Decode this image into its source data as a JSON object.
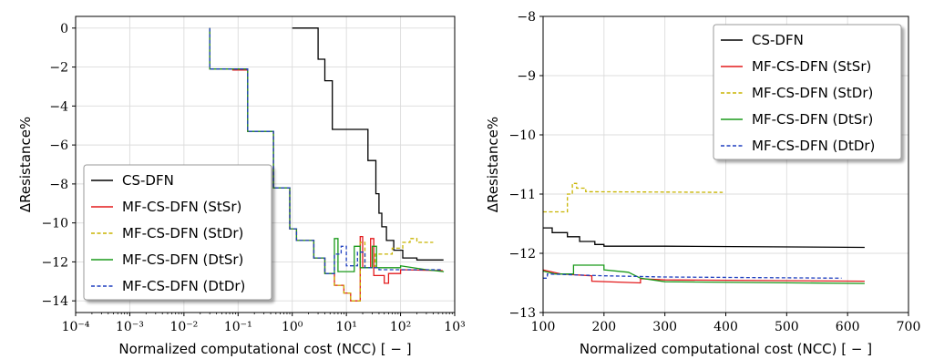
{
  "chart_data": [
    {
      "type": "line",
      "xscale": "log",
      "xlim": [
        0.0001,
        1000
      ],
      "ylim": [
        -14.6,
        0.6
      ],
      "xlabel": "Normalized computational cost (NCC) [ − ]",
      "ylabel": "ΔResistance%",
      "xtick_labels": [
        "10⁻⁴",
        "10⁻³",
        "10⁻²",
        "10⁻¹",
        "10⁰",
        "10¹",
        "10²",
        "10³"
      ],
      "ytick_labels": [
        "0",
        "−2",
        "−4",
        "−6",
        "−8",
        "−10",
        "−12",
        "−14"
      ],
      "grid": true,
      "legend_position": "lower-left",
      "series": [
        {
          "name": "CS-DFN",
          "color": "#000000",
          "dash": "solid",
          "points": [
            [
              1,
              0
            ],
            [
              3,
              0
            ],
            [
              3,
              -1.6
            ],
            [
              4,
              -1.6
            ],
            [
              4,
              -2.7
            ],
            [
              5.5,
              -2.7
            ],
            [
              5.5,
              -5.2
            ],
            [
              25,
              -5.2
            ],
            [
              25,
              -6.8
            ],
            [
              35,
              -6.8
            ],
            [
              35,
              -8.5
            ],
            [
              40,
              -8.5
            ],
            [
              40,
              -9.5
            ],
            [
              45,
              -9.5
            ],
            [
              45,
              -10.2
            ],
            [
              55,
              -10.2
            ],
            [
              55,
              -10.9
            ],
            [
              75,
              -10.9
            ],
            [
              75,
              -11.4
            ],
            [
              110,
              -11.4
            ],
            [
              110,
              -11.8
            ],
            [
              200,
              -11.8
            ],
            [
              200,
              -11.9
            ],
            [
              620,
              -11.9
            ]
          ]
        },
        {
          "name": "MF-CS-DFN (StSr)",
          "color": "#e31a1c",
          "dash": "solid",
          "points": [
            [
              0.03,
              0
            ],
            [
              0.03,
              -2.1
            ],
            [
              0.08,
              -2.1
            ],
            [
              0.08,
              -2.15
            ],
            [
              0.15,
              -2.15
            ],
            [
              0.15,
              -5.3
            ],
            [
              0.45,
              -5.3
            ],
            [
              0.45,
              -8.2
            ],
            [
              0.9,
              -8.2
            ],
            [
              0.9,
              -10.3
            ],
            [
              1.2,
              -10.3
            ],
            [
              1.2,
              -10.9
            ],
            [
              2.5,
              -10.9
            ],
            [
              2.5,
              -11.8
            ],
            [
              4,
              -11.8
            ],
            [
              4,
              -12.6
            ],
            [
              6,
              -12.6
            ],
            [
              6,
              -13.2
            ],
            [
              9,
              -13.2
            ],
            [
              9,
              -13.6
            ],
            [
              12,
              -13.6
            ],
            [
              12,
              -14.0
            ],
            [
              18,
              -14.0
            ],
            [
              18,
              -10.7
            ],
            [
              20,
              -10.7
            ],
            [
              20,
              -12.3
            ],
            [
              28,
              -12.3
            ],
            [
              28,
              -10.8
            ],
            [
              32,
              -10.8
            ],
            [
              32,
              -12.7
            ],
            [
              50,
              -12.7
            ],
            [
              50,
              -13.1
            ],
            [
              60,
              -13.1
            ],
            [
              60,
              -12.6
            ],
            [
              100,
              -12.6
            ],
            [
              100,
              -12.4
            ],
            [
              600,
              -12.45
            ]
          ]
        },
        {
          "name": "MF-CS-DFN (StDr)",
          "color": "#c8b400",
          "dash": "dashed",
          "points": [
            [
              0.03,
              0
            ],
            [
              0.03,
              -2.1
            ],
            [
              0.15,
              -2.1
            ],
            [
              0.15,
              -5.3
            ],
            [
              0.45,
              -5.3
            ],
            [
              0.45,
              -8.2
            ],
            [
              0.9,
              -8.2
            ],
            [
              0.9,
              -10.3
            ],
            [
              1.2,
              -10.3
            ],
            [
              1.2,
              -10.9
            ],
            [
              2.5,
              -10.9
            ],
            [
              2.5,
              -11.8
            ],
            [
              4,
              -11.8
            ],
            [
              4,
              -12.6
            ],
            [
              6,
              -12.6
            ],
            [
              6,
              -13.2
            ],
            [
              9,
              -13.2
            ],
            [
              9,
              -13.6
            ],
            [
              12,
              -13.6
            ],
            [
              12,
              -14.0
            ],
            [
              18,
              -14.0
            ],
            [
              18,
              -11.0
            ],
            [
              22,
              -11.0
            ],
            [
              22,
              -12.3
            ],
            [
              34,
              -12.3
            ],
            [
              34,
              -11.6
            ],
            [
              70,
              -11.6
            ],
            [
              70,
              -11.3
            ],
            [
              110,
              -11.3
            ],
            [
              110,
              -11.0
            ],
            [
              150,
              -11.0
            ],
            [
              150,
              -10.8
            ],
            [
              200,
              -10.8
            ],
            [
              200,
              -11.0
            ],
            [
              400,
              -11.0
            ]
          ]
        },
        {
          "name": "MF-CS-DFN (DtSr)",
          "color": "#1a9a1a",
          "dash": "solid",
          "points": [
            [
              0.03,
              0
            ],
            [
              0.03,
              -2.1
            ],
            [
              0.15,
              -2.1
            ],
            [
              0.15,
              -5.3
            ],
            [
              0.45,
              -5.3
            ],
            [
              0.45,
              -8.2
            ],
            [
              0.9,
              -8.2
            ],
            [
              0.9,
              -10.3
            ],
            [
              1.2,
              -10.3
            ],
            [
              1.2,
              -10.9
            ],
            [
              2.5,
              -10.9
            ],
            [
              2.5,
              -11.8
            ],
            [
              4,
              -11.8
            ],
            [
              4,
              -12.6
            ],
            [
              6,
              -12.6
            ],
            [
              6,
              -10.8
            ],
            [
              7,
              -10.8
            ],
            [
              7,
              -12.5
            ],
            [
              14,
              -12.5
            ],
            [
              14,
              -11.2
            ],
            [
              18,
              -11.2
            ],
            [
              18,
              -12.3
            ],
            [
              30,
              -12.3
            ],
            [
              30,
              -11.2
            ],
            [
              36,
              -11.2
            ],
            [
              36,
              -12.3
            ],
            [
              100,
              -12.3
            ],
            [
              100,
              -12.2
            ],
            [
              300,
              -12.4
            ],
            [
              630,
              -12.5
            ]
          ]
        },
        {
          "name": "MF-CS-DFN (DtDr)",
          "color": "#1f3fbf",
          "dash": "dashed",
          "points": [
            [
              0.03,
              0
            ],
            [
              0.03,
              -2.1
            ],
            [
              0.15,
              -2.1
            ],
            [
              0.15,
              -5.3
            ],
            [
              0.45,
              -5.3
            ],
            [
              0.45,
              -8.2
            ],
            [
              0.9,
              -8.2
            ],
            [
              0.9,
              -10.3
            ],
            [
              1.2,
              -10.3
            ],
            [
              1.2,
              -10.9
            ],
            [
              2.5,
              -10.9
            ],
            [
              2.5,
              -11.8
            ],
            [
              4,
              -11.8
            ],
            [
              4,
              -12.6
            ],
            [
              6,
              -12.6
            ],
            [
              6,
              -11.6
            ],
            [
              8,
              -11.6
            ],
            [
              8,
              -11.2
            ],
            [
              10,
              -11.2
            ],
            [
              10,
              -12.2
            ],
            [
              16,
              -12.2
            ],
            [
              16,
              -11.5
            ],
            [
              22,
              -11.5
            ],
            [
              22,
              -12.3
            ],
            [
              40,
              -12.3
            ],
            [
              40,
              -12.4
            ],
            [
              600,
              -12.4
            ]
          ]
        }
      ]
    },
    {
      "type": "line",
      "xscale": "linear",
      "xlim": [
        100,
        700
      ],
      "ylim": [
        -13,
        -8
      ],
      "xlabel": "Normalized computational cost (NCC) [ − ]",
      "ylabel": "ΔResistance%",
      "xtick_labels": [
        "100",
        "200",
        "300",
        "400",
        "500",
        "600",
        "700"
      ],
      "ytick_labels": [
        "−8",
        "−9",
        "−10",
        "−11",
        "−12",
        "−13"
      ],
      "grid": true,
      "legend_position": "upper-right",
      "series": [
        {
          "name": "CS-DFN",
          "color": "#000000",
          "dash": "solid",
          "points": [
            [
              100,
              -11.57
            ],
            [
              115,
              -11.57
            ],
            [
              115,
              -11.65
            ],
            [
              140,
              -11.65
            ],
            [
              140,
              -11.72
            ],
            [
              160,
              -11.72
            ],
            [
              160,
              -11.8
            ],
            [
              185,
              -11.8
            ],
            [
              185,
              -11.85
            ],
            [
              200,
              -11.85
            ],
            [
              200,
              -11.88
            ],
            [
              300,
              -11.88
            ],
            [
              628,
              -11.9
            ]
          ]
        },
        {
          "name": "MF-CS-DFN (StSr)",
          "color": "#e31a1c",
          "dash": "solid",
          "points": [
            [
              100,
              -12.28
            ],
            [
              130,
              -12.35
            ],
            [
              180,
              -12.38
            ],
            [
              180,
              -12.47
            ],
            [
              260,
              -12.5
            ],
            [
              260,
              -12.43
            ],
            [
              300,
              -12.45
            ],
            [
              628,
              -12.47
            ]
          ]
        },
        {
          "name": "MF-CS-DFN (StDr)",
          "color": "#c8b400",
          "dash": "dashed",
          "points": [
            [
              100,
              -11.3
            ],
            [
              140,
              -11.3
            ],
            [
              140,
              -11.0
            ],
            [
              148,
              -11.0
            ],
            [
              148,
              -10.82
            ],
            [
              155,
              -10.82
            ],
            [
              155,
              -10.9
            ],
            [
              170,
              -10.9
            ],
            [
              170,
              -10.96
            ],
            [
              395,
              -10.97
            ]
          ]
        },
        {
          "name": "MF-CS-DFN (DtSr)",
          "color": "#1a9a1a",
          "dash": "solid",
          "points": [
            [
              100,
              -12.3
            ],
            [
              120,
              -12.35
            ],
            [
              150,
              -12.35
            ],
            [
              150,
              -12.2
            ],
            [
              200,
              -12.2
            ],
            [
              200,
              -12.28
            ],
            [
              240,
              -12.32
            ],
            [
              260,
              -12.42
            ],
            [
              300,
              -12.48
            ],
            [
              628,
              -12.51
            ]
          ]
        },
        {
          "name": "MF-CS-DFN (DtDr)",
          "color": "#1f3fbf",
          "dash": "dashed",
          "points": [
            [
              100,
              -12.42
            ],
            [
              107,
              -12.42
            ],
            [
              107,
              -12.35
            ],
            [
              200,
              -12.38
            ],
            [
              300,
              -12.4
            ],
            [
              590,
              -12.42
            ]
          ]
        }
      ]
    }
  ]
}
